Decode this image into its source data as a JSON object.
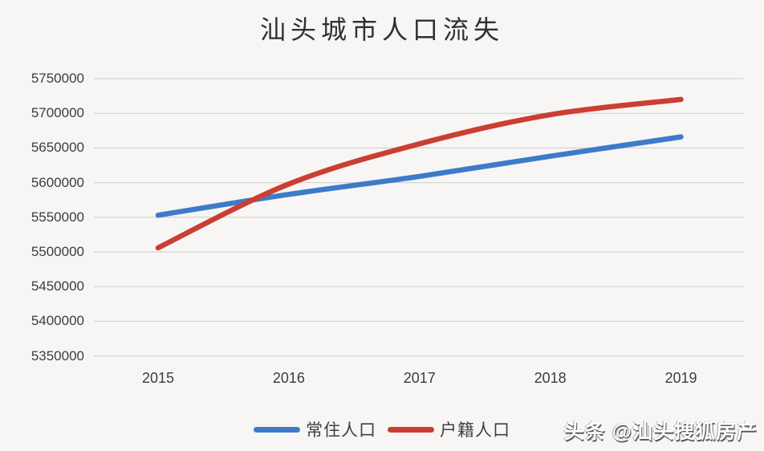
{
  "title": "汕头城市人口流失",
  "watermark": "头条 @汕头搜狐房产",
  "colors": {
    "background": "#f7f6f4",
    "gridline": "#cdccd0",
    "axis_text": "#3d3d3d",
    "title_text": "#303030",
    "legend_text": "#3f3f3f",
    "watermark_shadow": "#5a5a5a",
    "series_blue": "#3d7bc8",
    "series_red": "#cb3e33"
  },
  "chart_data": {
    "type": "line",
    "title": "汕头城市人口流失",
    "categories": [
      "2015",
      "2016",
      "2017",
      "2018",
      "2019"
    ],
    "series": [
      {
        "name": "常住人口",
        "color": "#3d7bc8",
        "values": [
          5553000,
          5583000,
          5609000,
          5638000,
          5666000
        ]
      },
      {
        "name": "户籍人口",
        "color": "#cb3e33",
        "values": [
          5506000,
          5598000,
          5656000,
          5698000,
          5720000
        ]
      }
    ],
    "xlabel": "",
    "ylabel": "",
    "ylim": [
      5350000,
      5750000
    ],
    "ytick_step": 50000,
    "grid": true,
    "smooth": true,
    "legend_position": "bottom"
  }
}
